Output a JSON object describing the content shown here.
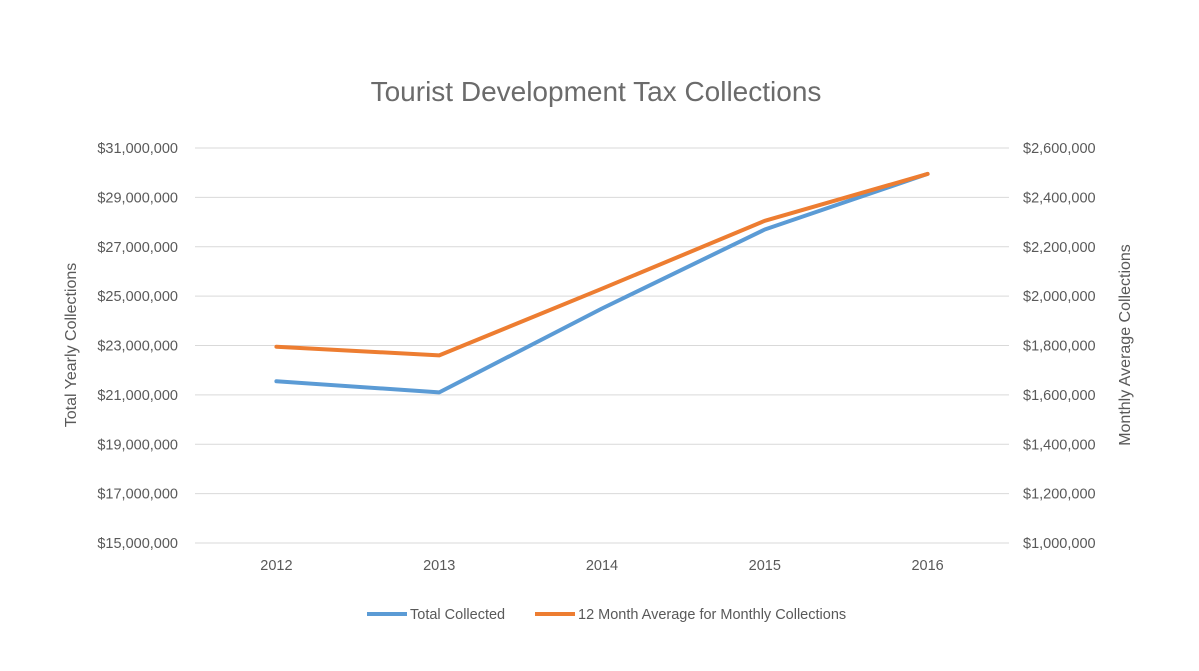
{
  "chart_data": {
    "type": "line",
    "title": "Tourist Development Tax Collections",
    "categories": [
      "2012",
      "2013",
      "2014",
      "2015",
      "2016"
    ],
    "y_left": {
      "label": "Total Yearly Collections",
      "range": [
        15000000,
        31000000
      ],
      "step": 2000000,
      "ticks": [
        "$15,000,000",
        "$17,000,000",
        "$19,000,000",
        "$21,000,000",
        "$23,000,000",
        "$25,000,000",
        "$27,000,000",
        "$29,000,000",
        "$31,000,000"
      ]
    },
    "y_right": {
      "label": "Monthly Average Collections",
      "range": [
        1000000,
        2600000
      ],
      "step": 200000,
      "ticks": [
        "$1,000,000",
        "$1,200,000",
        "$1,400,000",
        "$1,600,000",
        "$1,800,000",
        "$2,000,000",
        "$2,200,000",
        "$2,400,000",
        "$2,600,000"
      ]
    },
    "series": [
      {
        "name": "Total Collected",
        "axis": "left",
        "color": "#5b9bd5",
        "values": [
          21550000,
          21100000,
          24500000,
          27700000,
          29950000
        ]
      },
      {
        "name": "12 Month Average for Monthly Collections",
        "axis": "right",
        "color": "#ed7d31",
        "values": [
          1795000,
          1760000,
          2030000,
          2305000,
          2495000
        ]
      }
    ],
    "grid": true,
    "legend_position": "bottom"
  }
}
